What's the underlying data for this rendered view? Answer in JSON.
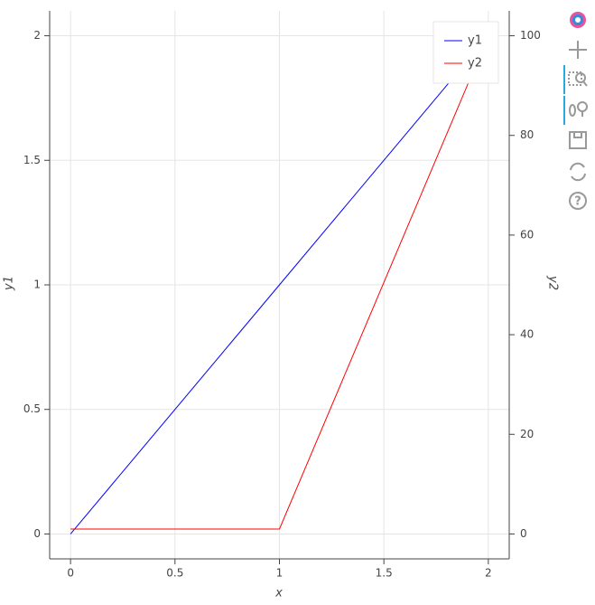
{
  "chart_data": {
    "type": "line",
    "x": [
      0,
      1,
      2
    ],
    "series": [
      {
        "name": "y1",
        "color": "#0000ff",
        "values": [
          0,
          1,
          2
        ]
      },
      {
        "name": "y2",
        "color": "#ff0000",
        "values": [
          1,
          1,
          100
        ],
        "axis": "y2"
      }
    ],
    "xlabel": "x",
    "ylabel": "y1",
    "y2label": "y2",
    "xlim": [
      -0.1,
      2.1
    ],
    "xticks": [
      0,
      0.5,
      1,
      1.5,
      2
    ],
    "ylim": [
      -0.1,
      2.1
    ],
    "yticks": [
      0,
      0.5,
      1,
      1.5,
      2
    ],
    "y2lim": [
      -5,
      105
    ],
    "y2ticks": [
      0,
      20,
      40,
      60,
      80,
      100
    ],
    "grid": true,
    "legend": "top-right"
  }
}
